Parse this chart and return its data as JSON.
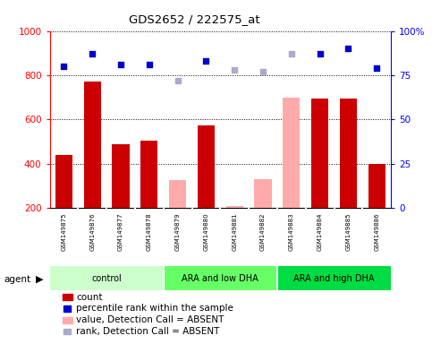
{
  "title": "GDS2652 / 222575_at",
  "samples": [
    "GSM149875",
    "GSM149876",
    "GSM149877",
    "GSM149878",
    "GSM149879",
    "GSM149880",
    "GSM149881",
    "GSM149882",
    "GSM149883",
    "GSM149884",
    "GSM149885",
    "GSM149886"
  ],
  "groups": [
    {
      "label": "control",
      "start": 0,
      "end": 4,
      "color": "#ccffcc"
    },
    {
      "label": "ARA and low DHA",
      "start": 4,
      "end": 8,
      "color": "#66ff66"
    },
    {
      "label": "ARA and high DHA",
      "start": 8,
      "end": 12,
      "color": "#00dd44"
    }
  ],
  "bar_values": [
    440,
    770,
    490,
    505,
    null,
    575,
    null,
    null,
    null,
    695,
    695,
    400
  ],
  "bar_absent_values": [
    null,
    null,
    null,
    null,
    325,
    null,
    210,
    330,
    700,
    null,
    null,
    null
  ],
  "dot_values": [
    80,
    87,
    81,
    81,
    null,
    83,
    null,
    null,
    null,
    87,
    90,
    79
  ],
  "dot_absent_values": [
    null,
    null,
    null,
    null,
    72,
    null,
    78,
    77,
    87,
    null,
    null,
    null
  ],
  "bar_color": "#cc0000",
  "bar_absent_color": "#ffaaaa",
  "dot_color": "#0000cc",
  "dot_absent_color": "#aaaacc",
  "ylim_left": [
    200,
    1000
  ],
  "ylim_right": [
    0,
    100
  ],
  "left_ticks": [
    200,
    400,
    600,
    800,
    1000
  ],
  "right_ticks": [
    0,
    25,
    50,
    75,
    100
  ],
  "background_color": "#ffffff"
}
